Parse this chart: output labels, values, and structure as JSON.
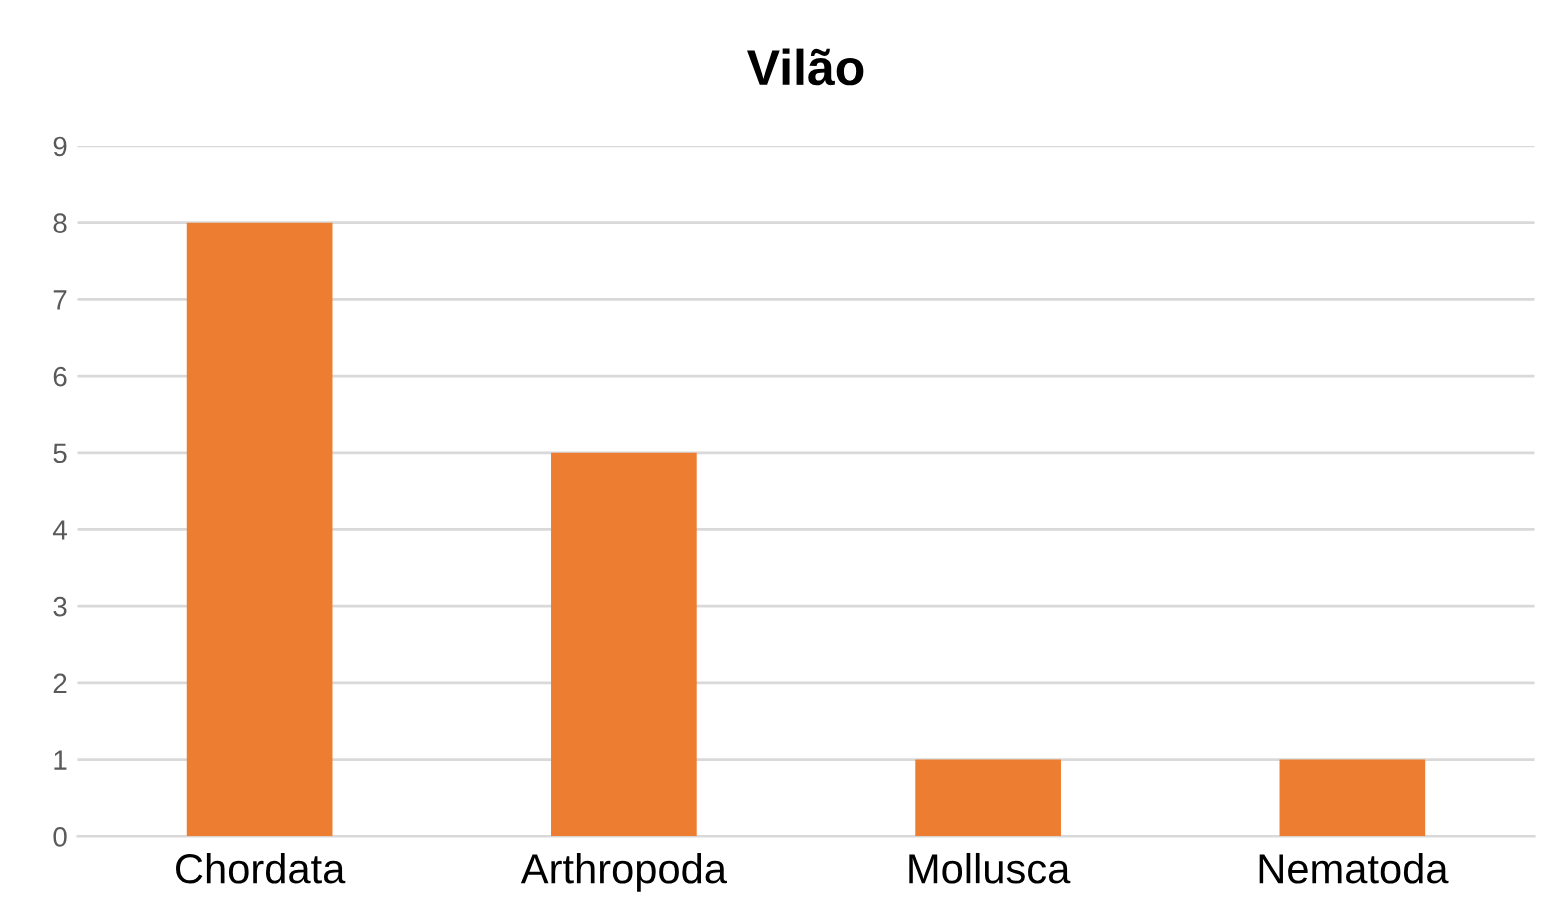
{
  "chart_data": {
    "type": "bar",
    "title": "Vilão",
    "categories": [
      "Chordata",
      "Arthropoda",
      "Mollusca",
      "Nematoda"
    ],
    "values": [
      8,
      5,
      1,
      1
    ],
    "color": "#ed7d31",
    "ylim": [
      0,
      9
    ],
    "yticks": [
      0,
      1,
      2,
      3,
      4,
      5,
      6,
      7,
      8,
      9
    ],
    "grid": "y"
  }
}
